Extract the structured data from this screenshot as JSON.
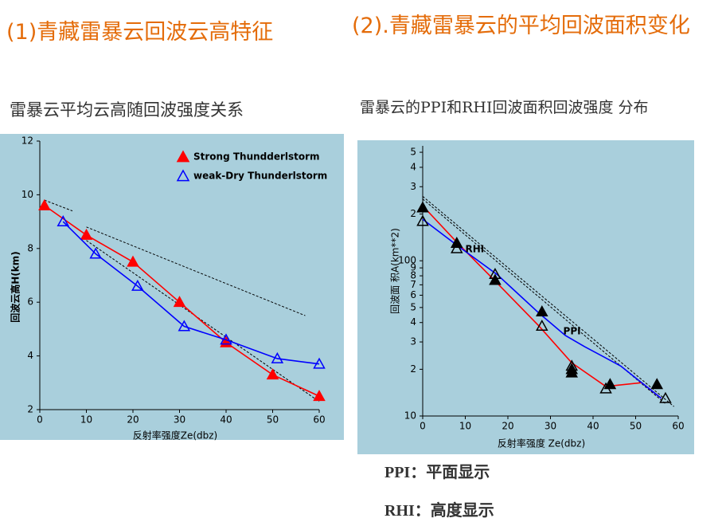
{
  "slide": {
    "heading_left": "(1)青藏雷暴云回波云高特征",
    "heading_right": "(2).青藏雷暴云的平均回波面积变化",
    "subtitle_left": "雷暴云平均云高随回波强度关系",
    "subtitle_right": "雷暴云的PPI和RHI回波面积回波强度 分布",
    "notes": [
      "PPI：平面显示",
      "RHI：高度显示"
    ]
  },
  "chart_data": [
    {
      "type": "line",
      "xlabel": "反射率强度Ze(dbz)",
      "ylabel": "回波云高H(km)",
      "xlim": [
        0,
        60
      ],
      "ylim": [
        2,
        12
      ],
      "xticks": [
        0,
        10,
        20,
        30,
        40,
        50,
        60
      ],
      "yticks": [
        2,
        4,
        6,
        8,
        10,
        12
      ],
      "legend": "upper right",
      "background": "#a9cfdc",
      "series": [
        {
          "name": "Strong Thundderlstorm",
          "color": "#ff0000",
          "marker": "filled",
          "x": [
            1,
            10,
            20,
            30,
            40,
            50,
            60
          ],
          "values": [
            9.6,
            8.5,
            7.5,
            6.0,
            4.5,
            3.3,
            2.5
          ]
        },
        {
          "name": "weak-Dry Thunderlstorm",
          "color": "#0000ff",
          "marker": "hollow",
          "x": [
            5,
            12,
            21,
            31,
            40,
            51,
            60
          ],
          "values": [
            9.0,
            7.8,
            6.6,
            5.1,
            4.6,
            3.9,
            3.7
          ]
        }
      ],
      "dashed_lines": [
        {
          "x": [
            1,
            7
          ],
          "values": [
            9.8,
            9.4
          ]
        },
        {
          "x": [
            10,
            57
          ],
          "values": [
            8.8,
            5.5
          ]
        },
        {
          "x": [
            10,
            60
          ],
          "values": [
            8.3,
            2.3
          ]
        }
      ]
    },
    {
      "type": "line",
      "xlabel": "反射率强度 Ze(dbz)",
      "ylabel": "回波面 积A(km**2)",
      "xlim": [
        0,
        60
      ],
      "ylim": [
        10,
        550
      ],
      "log_y": true,
      "background": "#a9cfdc",
      "xticks": [
        0,
        10,
        20,
        30,
        40,
        50,
        60
      ],
      "yticks": [
        10,
        {
          "value": 20,
          "label": "2"
        },
        {
          "value": 30,
          "label": "3"
        },
        {
          "value": 40,
          "label": "4"
        },
        {
          "value": 50,
          "label": "5"
        },
        {
          "value": 60,
          "label": "6"
        },
        {
          "value": 70,
          "label": "7"
        },
        {
          "value": 80,
          "label": "8"
        },
        {
          "value": 90,
          "label": "9"
        },
        100,
        {
          "value": 200,
          "label": "2"
        },
        {
          "value": 300,
          "label": "3"
        },
        {
          "value": 400,
          "label": "4"
        },
        {
          "value": 500,
          "label": "5"
        }
      ],
      "series": [
        {
          "color": "#ff0000",
          "x": [
            0,
            8.2,
            16.6,
            27.3,
            35,
            43,
            51.4,
            56
          ],
          "values": [
            226,
            130,
            76,
            38,
            22,
            15.5,
            16.4,
            13
          ]
        },
        {
          "color": "#0000ff",
          "x": [
            0,
            8.2,
            17.6,
            27.3,
            33.5,
            38,
            46.5,
            56
          ],
          "values": [
            185,
            125,
            81,
            46,
            33,
            28,
            21,
            13
          ]
        },
        {
          "color": "#000000",
          "marker": "filled",
          "line": false,
          "x": [
            0,
            8,
            17,
            28,
            35,
            35,
            44,
            55
          ],
          "values": [
            220,
            130,
            75,
            47,
            20,
            19,
            16,
            16
          ]
        },
        {
          "color": "#000000",
          "marker": "hollow",
          "line": false,
          "x": [
            0,
            8,
            17,
            28,
            35,
            43,
            57
          ],
          "values": [
            180,
            120,
            82,
            38,
            21,
            15,
            13
          ]
        }
      ],
      "dashed_lines": [
        {
          "x": [
            0,
            57
          ],
          "values": [
            250,
            12
          ]
        },
        {
          "x": [
            0,
            59
          ],
          "values": [
            260,
            11.5
          ]
        }
      ],
      "annotations": [
        {
          "text": "RHI",
          "x": 10,
          "y": 118
        },
        {
          "text": "PPI",
          "x": 33,
          "y": 35
        }
      ]
    }
  ]
}
